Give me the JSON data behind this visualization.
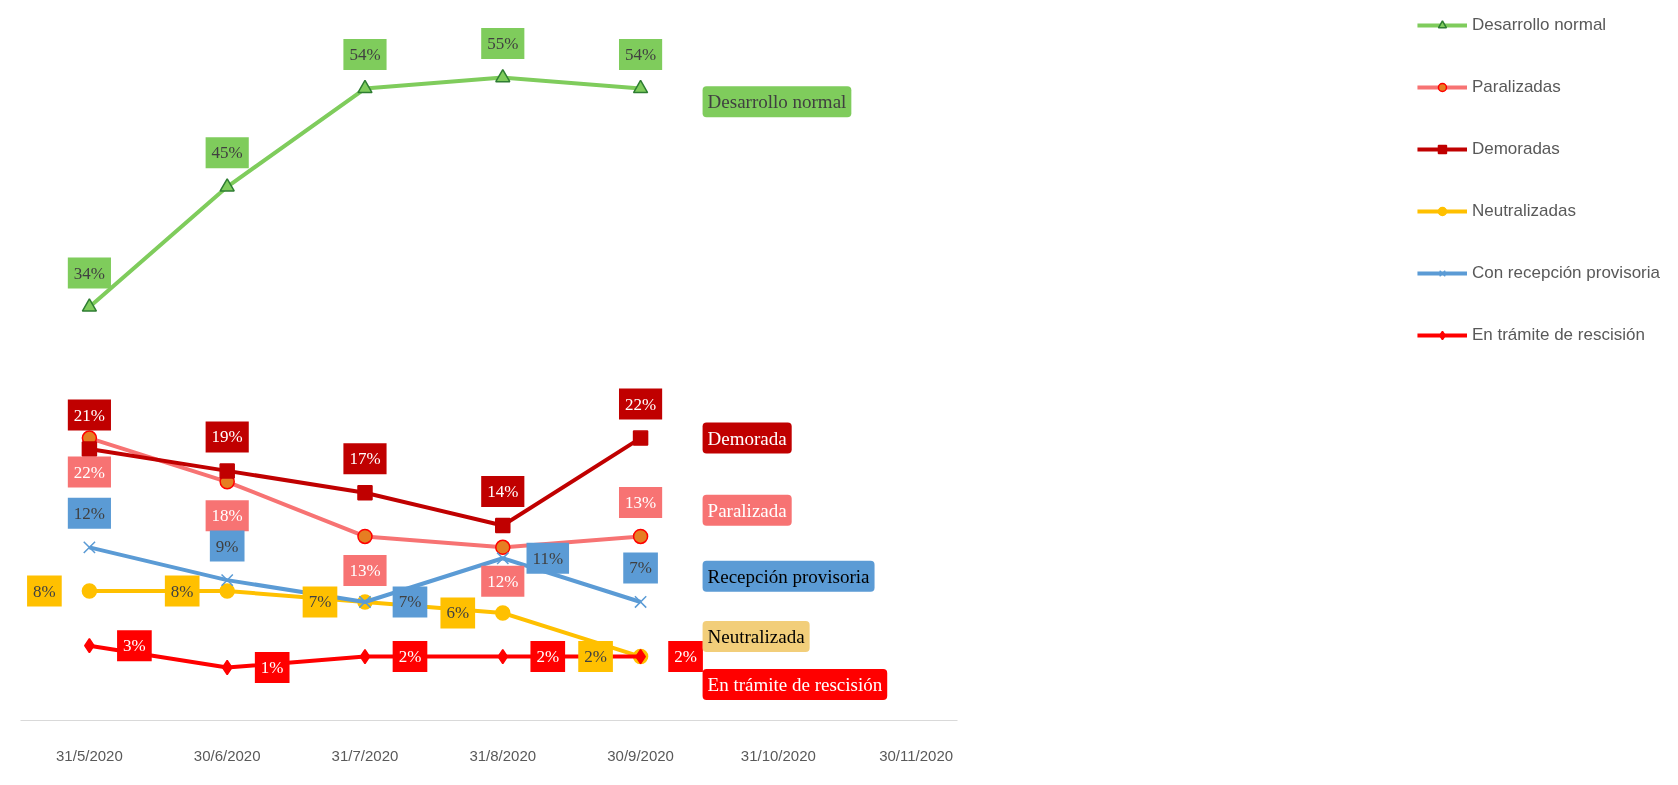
{
  "chart_data": {
    "type": "line",
    "categories": [
      "31/5/2020",
      "30/6/2020",
      "31/7/2020",
      "31/8/2020",
      "30/9/2020",
      "31/10/2020",
      "30/11/2020"
    ],
    "series": [
      {
        "name": "Desarrollo normal",
        "color": "#7fcc5c",
        "marker": "triangle",
        "values": [
          34,
          45,
          54,
          55,
          54,
          null,
          null
        ],
        "value_labels": [
          "34%",
          "45%",
          "54%",
          "55%",
          "54%",
          null,
          null
        ]
      },
      {
        "name": "Paralizadas",
        "color": "#f77373",
        "marker": "circle",
        "values": [
          22,
          18,
          13,
          12,
          13,
          null,
          null
        ],
        "value_labels": [
          "22%",
          "18%",
          "13%",
          "12%",
          "13%",
          null,
          null
        ]
      },
      {
        "name": "Demoradas",
        "color": "#c00000",
        "marker": "square",
        "values": [
          21,
          19,
          17,
          14,
          22,
          null,
          null
        ],
        "value_labels": [
          "21%",
          "19%",
          "17%",
          "14%",
          "22%",
          null,
          null
        ]
      },
      {
        "name": "Neutralizadas",
        "color": "#ffc000",
        "marker": "circle",
        "values": [
          8,
          8,
          7,
          6,
          2,
          null,
          null
        ],
        "value_labels": [
          "8%",
          "8%",
          "7%",
          "6%",
          "2%",
          null,
          null
        ]
      },
      {
        "name": "Con recepción provisoria",
        "color": "#5b9bd5",
        "marker": "cross",
        "values": [
          12,
          9,
          7,
          11,
          7,
          null,
          null
        ],
        "value_labels": [
          "12%",
          "9%",
          "7%",
          "11%",
          "7%",
          null,
          null
        ]
      },
      {
        "name": "En trámite de rescisión",
        "color": "#ff0000",
        "marker": "diamond",
        "values": [
          3,
          1,
          2,
          2,
          2,
          null,
          null
        ],
        "value_labels": [
          "3%",
          "1%",
          "2%",
          "2%",
          "2%",
          null,
          null
        ]
      }
    ],
    "annotations": [
      "Desarrollo normal",
      "Demorada",
      "Paralizada",
      "Recepción provisoria",
      "Neutralizada",
      "En trámite de rescisión"
    ],
    "legend": "right",
    "grid": false,
    "line_style": "solid"
  }
}
